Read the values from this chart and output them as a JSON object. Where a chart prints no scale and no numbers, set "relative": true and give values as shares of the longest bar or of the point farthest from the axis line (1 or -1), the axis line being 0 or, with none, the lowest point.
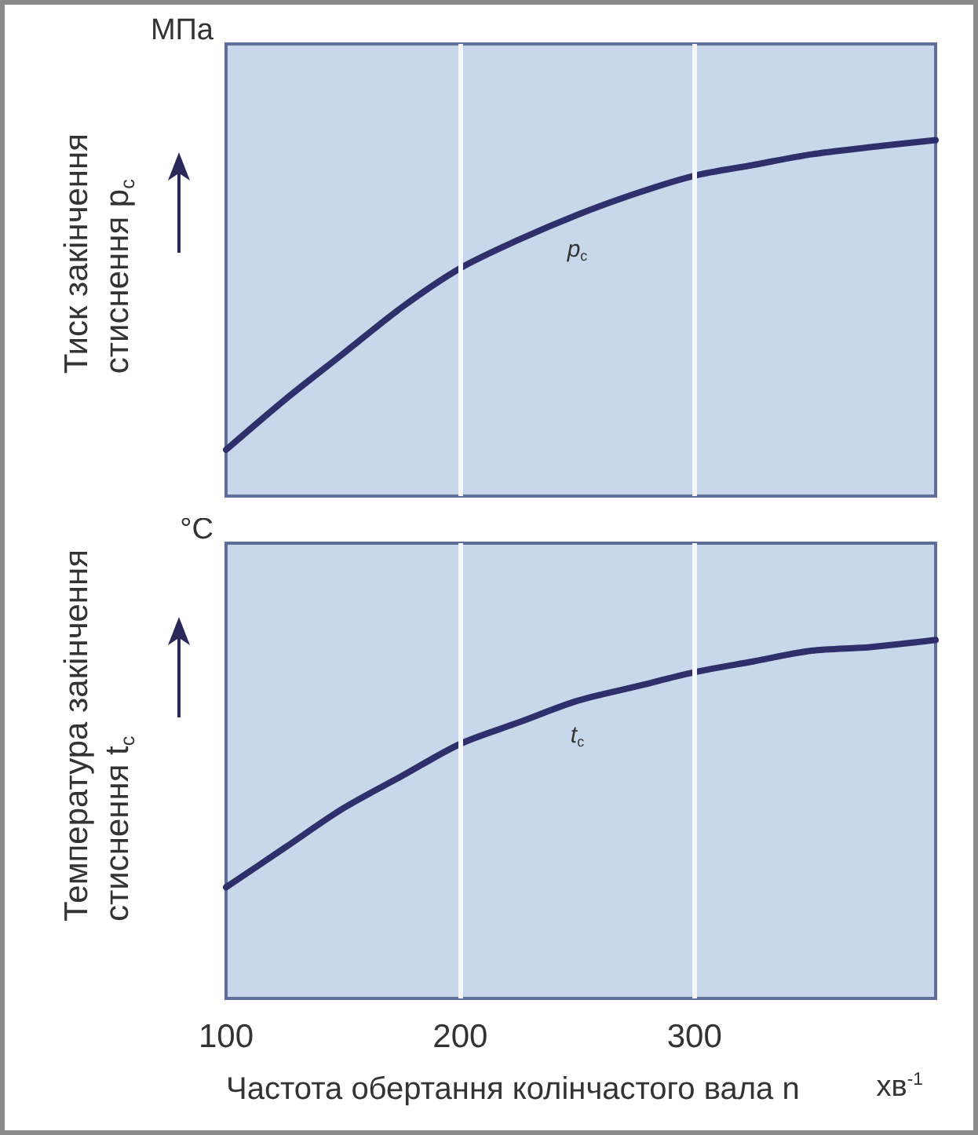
{
  "chart_data": [
    {
      "type": "line",
      "ylabel": "Тиск закінчення\nстиснення p$_{с}$",
      "annotations": [
        "МПа"
      ],
      "x": [
        100,
        125,
        150,
        175,
        200,
        225,
        250,
        275,
        300,
        325,
        350,
        375,
        403
      ],
      "xlim": [
        100,
        403
      ],
      "xticks": [
        100,
        200,
        300
      ],
      "relative": true,
      "grid": "x",
      "tick_labels": false,
      "marker": "none",
      "line_style": "solid",
      "series": [
        {
          "name": "p$_{с}$",
          "color": "#2e2f6b",
          "values": [
            0.13,
            0.27,
            0.4,
            0.53,
            0.64,
            0.72,
            0.79,
            0.85,
            0.9,
            0.93,
            0.96,
            0.98,
            1
          ]
        }
      ]
    },
    {
      "type": "line",
      "ylabel": "Температура закінчення\nстиснення t$_{с}$",
      "xlabel": "Частота обертання колінчастого вала n",
      "annotations": [
        "°C",
        "хв$^{-1}$"
      ],
      "x": [
        100,
        125,
        150,
        175,
        200,
        225,
        250,
        275,
        300,
        325,
        350,
        375,
        403
      ],
      "xlim": [
        100,
        403
      ],
      "xticks": [
        100,
        200,
        300
      ],
      "relative": true,
      "grid": "x",
      "tick_labels": "x",
      "marker": "none",
      "line_style": "solid",
      "series": [
        {
          "name": "t$_{с}$",
          "color": "#2e2f6b",
          "values": [
            0.31,
            0.42,
            0.53,
            0.62,
            0.71,
            0.77,
            0.83,
            0.87,
            0.91,
            0.94,
            0.97,
            0.98,
            1
          ]
        }
      ]
    }
  ]
}
